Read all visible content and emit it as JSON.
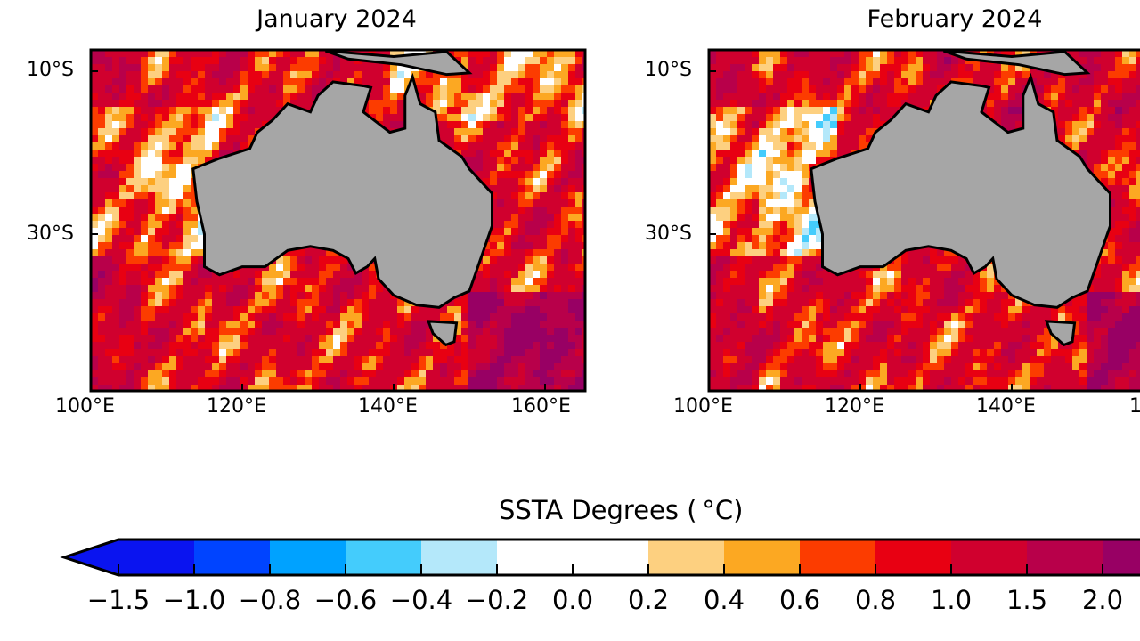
{
  "panels": [
    {
      "title": "January 2024",
      "x_ticks": [
        "100°E",
        "120°E",
        "140°E",
        "160°E"
      ],
      "y_ticks": [
        "10°S",
        "30°S"
      ]
    },
    {
      "title": "February 2024",
      "x_ticks": [
        "100°E",
        "120°E",
        "140°E",
        "1"
      ],
      "y_ticks": [
        "10°S",
        "30°S"
      ]
    }
  ],
  "colorbar": {
    "label": "SSTA Degrees ( °C)",
    "ticks": [
      "−1.5",
      "−1.0",
      "−0.8",
      "−0.6",
      "−0.4",
      "−0.2",
      "0.0",
      "0.2",
      "0.4",
      "0.6",
      "0.8",
      "1.0",
      "1.5",
      "2.0"
    ],
    "colors": [
      "#0a14f0",
      "#0a14f0",
      "#0044ff",
      "#00a2ff",
      "#44ccfc",
      "#b4e8fa",
      "#ffffff",
      "#ffffff",
      "#fdd080",
      "#fca822",
      "#fc3c00",
      "#e80012",
      "#d0002e",
      "#b8004a",
      "#980064"
    ],
    "extend": "both"
  },
  "land_color": "#a6a6a6"
}
